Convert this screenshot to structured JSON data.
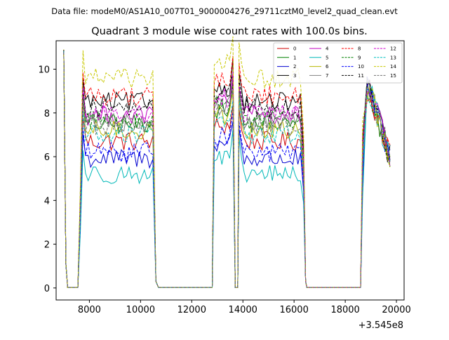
{
  "suptitle": "Data file: modeM0/AS1A10_007T01_9000004276_29711cztM0_level2_quad_clean.evt",
  "chart_data": {
    "type": "line",
    "title": "Quadrant 3 module wise count rates with 100.0s bins.",
    "xlabel": "",
    "ylabel": "",
    "x_offset_label": "+3.545e8",
    "xlim": [
      6700,
      20300
    ],
    "ylim": [
      -0.55,
      11.3
    ],
    "xticks": [
      8000,
      10000,
      12000,
      14000,
      16000,
      18000,
      20000
    ],
    "yticks": [
      0,
      2,
      4,
      6,
      8,
      10
    ],
    "legend_position": "top-right",
    "legend_columns": 4,
    "segments": [
      {
        "start": 7000,
        "end": 10700
      },
      {
        "start": 12800,
        "end": 13700
      },
      {
        "start": 13800,
        "end": 16500
      },
      {
        "start": 18600,
        "end": 19800
      }
    ],
    "series": [
      {
        "name": "0",
        "level": 6.7,
        "color": "#d00000",
        "dash": "solid"
      },
      {
        "name": "1",
        "level": 7.5,
        "color": "#008000",
        "dash": "solid"
      },
      {
        "name": "2",
        "level": 5.9,
        "color": "#0000d0",
        "dash": "solid"
      },
      {
        "name": "3",
        "level": 8.5,
        "color": "#000000",
        "dash": "solid"
      },
      {
        "name": "4",
        "level": 7.9,
        "color": "#c000c0",
        "dash": "solid"
      },
      {
        "name": "5",
        "level": 5.2,
        "color": "#00b8b8",
        "dash": "solid"
      },
      {
        "name": "6",
        "level": 7.2,
        "color": "#b8b800",
        "dash": "solid"
      },
      {
        "name": "7",
        "level": 7.6,
        "color": "#808080",
        "dash": "solid"
      },
      {
        "name": "8",
        "level": 8.8,
        "color": "#ff0000",
        "dash": "dashed"
      },
      {
        "name": "9",
        "level": 7.7,
        "color": "#008000",
        "dash": "dashed"
      },
      {
        "name": "10",
        "level": 6.2,
        "color": "#0000ff",
        "dash": "dashed"
      },
      {
        "name": "11",
        "level": 8.2,
        "color": "#000000",
        "dash": "dashed"
      },
      {
        "name": "12",
        "level": 8.0,
        "color": "#d000d0",
        "dash": "dashed"
      },
      {
        "name": "13",
        "level": 7.0,
        "color": "#00c0c0",
        "dash": "dashed"
      },
      {
        "name": "14",
        "level": 9.6,
        "color": "#c8c800",
        "dash": "dashed"
      },
      {
        "name": "15",
        "level": 7.4,
        "color": "#707070",
        "dash": "dashed"
      }
    ]
  }
}
